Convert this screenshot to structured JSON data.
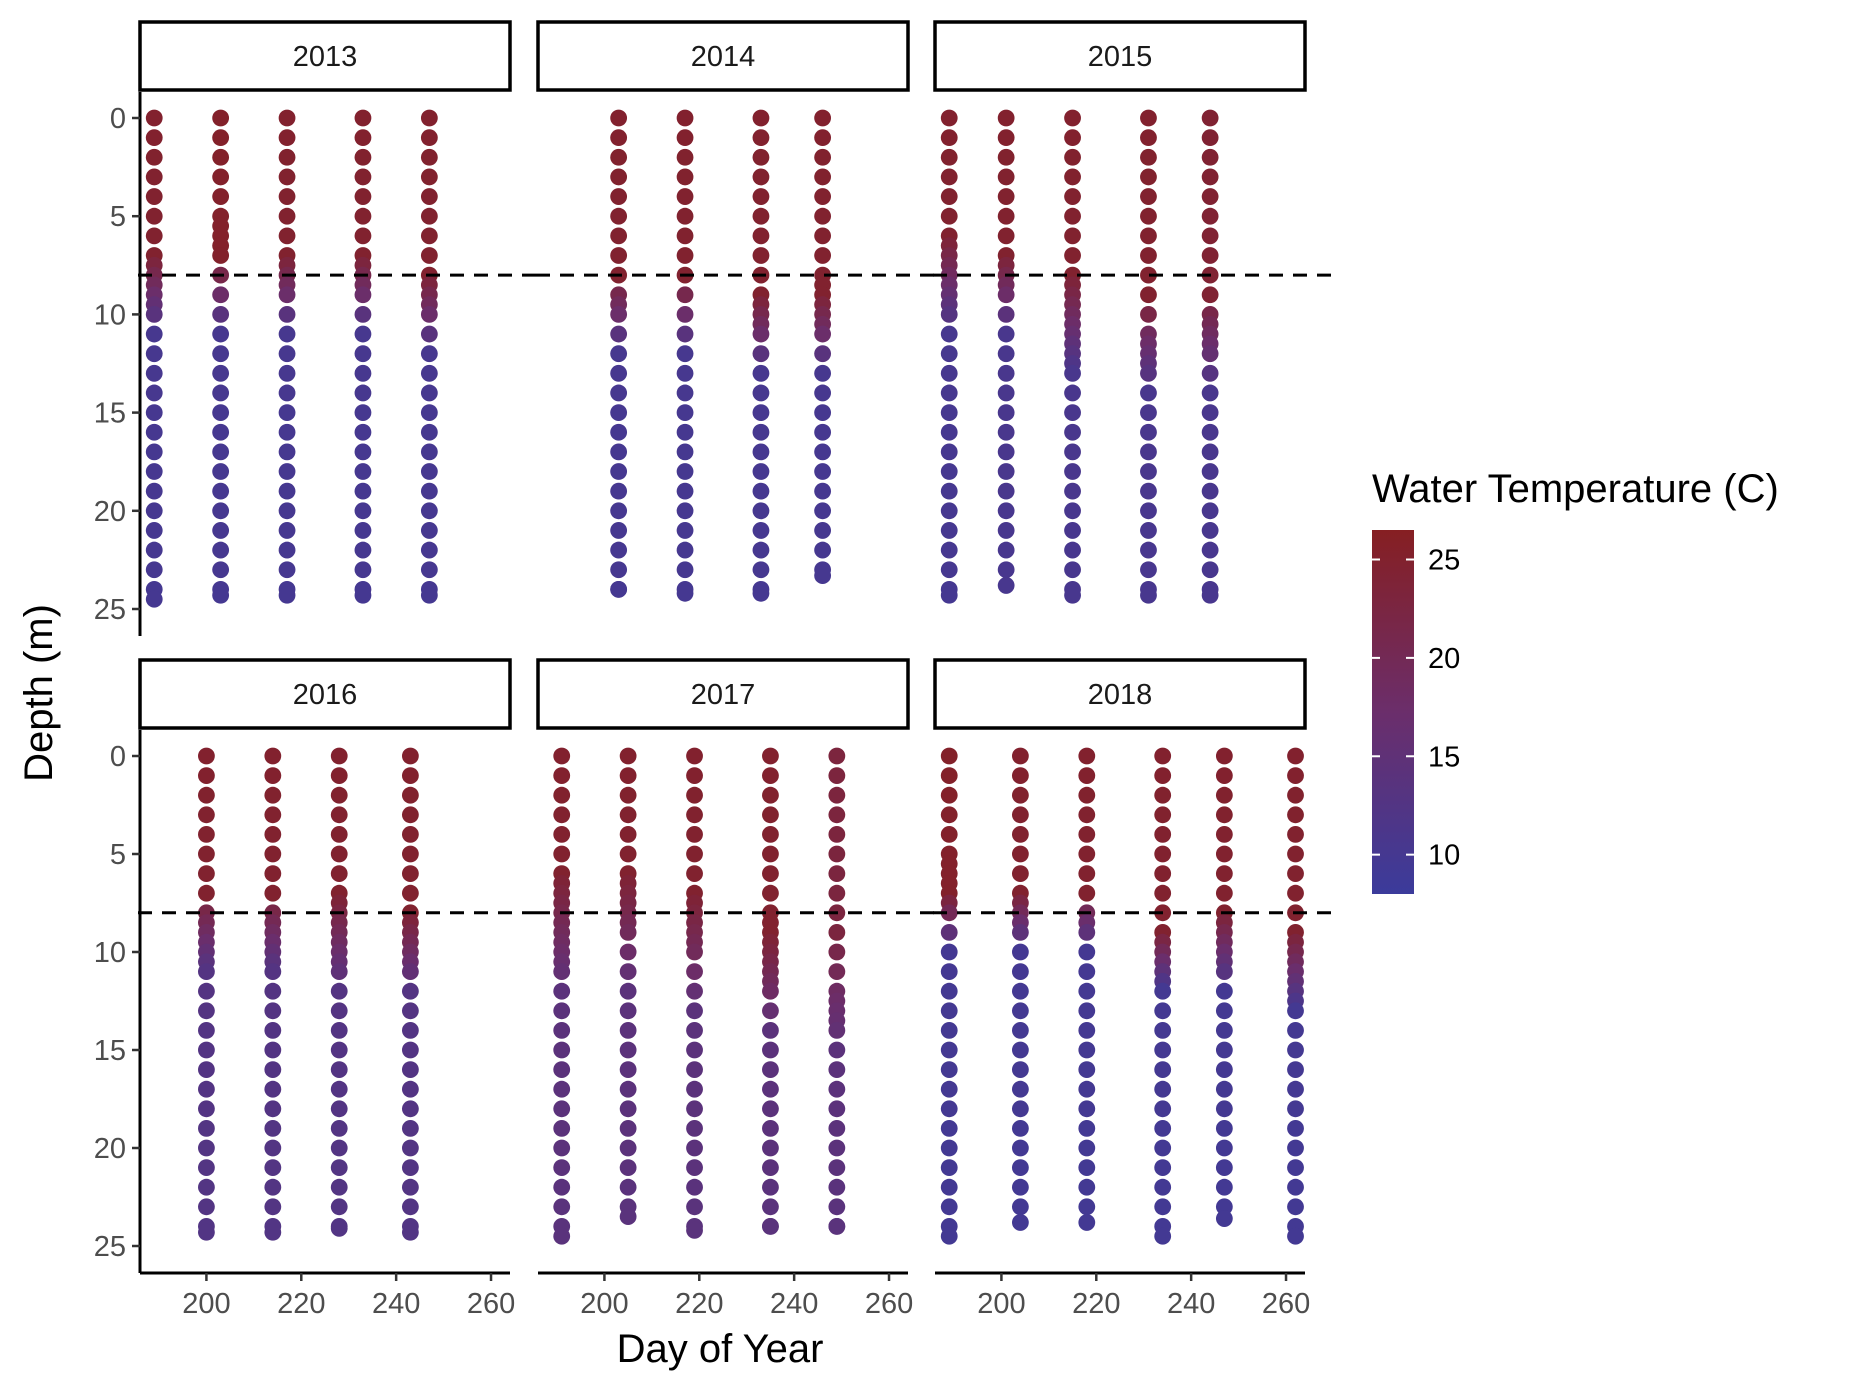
{
  "chart_data": {
    "type": "scatter",
    "facet_by": "year",
    "xlabel": "Day of Year",
    "ylabel": "Depth (m)",
    "xlim": [
      186,
      264
    ],
    "x_ticks": [
      200,
      220,
      240,
      260
    ],
    "ylim": [
      0,
      25
    ],
    "y_ticks": [
      0,
      5,
      10,
      15,
      20,
      25
    ],
    "y_reversed": true,
    "reference_line": {
      "y": 8,
      "style": "dashed",
      "color": "#000000"
    },
    "color_legend": {
      "title": "Water Temperature (C)",
      "min": 8,
      "max": 26.5,
      "ticks": [
        10,
        15,
        20,
        25
      ],
      "low_color": "#3b3b9b",
      "mid_color": "#6b2e6b",
      "high_color": "#861f22"
    },
    "panels": [
      {
        "year": "2013",
        "profiles": [
          {
            "day": 189,
            "max_depth": 24.5,
            "surface_temp": 25.0,
            "thermocline_top": 7,
            "thermocline_bottom": 11,
            "bottom_temp": 10.0,
            "dense": [
              [
                7.5,
                10.5
              ]
            ]
          },
          {
            "day": 203,
            "max_depth": 24.3,
            "surface_temp": 25.5,
            "thermocline_top": 7,
            "thermocline_bottom": 11,
            "bottom_temp": 10.0,
            "dense": [
              [
                5,
                7
              ]
            ]
          },
          {
            "day": 217,
            "max_depth": 24.3,
            "surface_temp": 25.0,
            "thermocline_top": 7,
            "thermocline_bottom": 11,
            "bottom_temp": 10.0,
            "dense": [
              [
                7,
                9
              ]
            ]
          },
          {
            "day": 233,
            "max_depth": 24.3,
            "surface_temp": 25.0,
            "thermocline_top": 7,
            "thermocline_bottom": 11,
            "bottom_temp": 10.0,
            "dense": [
              [
                7,
                9
              ]
            ]
          },
          {
            "day": 247,
            "max_depth": 24.3,
            "surface_temp": 25.0,
            "thermocline_top": 8,
            "thermocline_bottom": 12,
            "bottom_temp": 10.0,
            "dense": [
              [
                8,
                10
              ]
            ]
          }
        ]
      },
      {
        "year": "2014",
        "profiles": [
          {
            "day": 203,
            "max_depth": 24.0,
            "surface_temp": 25.0,
            "thermocline_top": 8,
            "thermocline_bottom": 12,
            "bottom_temp": 10.0,
            "dense": [
              [
                9,
                10
              ]
            ]
          },
          {
            "day": 217,
            "max_depth": 24.2,
            "surface_temp": 25.0,
            "thermocline_top": 8,
            "thermocline_bottom": 12,
            "bottom_temp": 10.0,
            "dense": []
          },
          {
            "day": 233,
            "max_depth": 24.2,
            "surface_temp": 25.0,
            "thermocline_top": 9,
            "thermocline_bottom": 13,
            "bottom_temp": 10.0,
            "dense": [
              [
                9,
                11
              ]
            ]
          },
          {
            "day": 246,
            "max_depth": 23.3,
            "surface_temp": 25.0,
            "thermocline_top": 9,
            "thermocline_bottom": 13,
            "bottom_temp": 10.0,
            "dense": [
              [
                8,
                11
              ]
            ]
          }
        ]
      },
      {
        "year": "2015",
        "profiles": [
          {
            "day": 189,
            "max_depth": 24.3,
            "surface_temp": 25.0,
            "thermocline_top": 6,
            "thermocline_bottom": 11,
            "bottom_temp": 10.0,
            "dense": [
              [
                6,
                10
              ]
            ]
          },
          {
            "day": 201,
            "max_depth": 23.8,
            "surface_temp": 25.0,
            "thermocline_top": 7,
            "thermocline_bottom": 11,
            "bottom_temp": 10.5,
            "dense": [
              [
                7,
                9
              ]
            ]
          },
          {
            "day": 215,
            "max_depth": 24.3,
            "surface_temp": 25.0,
            "thermocline_top": 8,
            "thermocline_bottom": 13,
            "bottom_temp": 10.5,
            "dense": [
              [
                8,
                13
              ]
            ]
          },
          {
            "day": 231,
            "max_depth": 24.3,
            "surface_temp": 25.0,
            "thermocline_top": 9,
            "thermocline_bottom": 14,
            "bottom_temp": 10.5,
            "dense": [
              [
                11,
                13
              ]
            ]
          },
          {
            "day": 244,
            "max_depth": 24.3,
            "surface_temp": 24.5,
            "thermocline_top": 9,
            "thermocline_bottom": 14,
            "bottom_temp": 10.5,
            "dense": [
              [
                10,
                12
              ]
            ]
          }
        ]
      },
      {
        "year": "2016",
        "profiles": [
          {
            "day": 200,
            "max_depth": 24.3,
            "surface_temp": 25.0,
            "thermocline_top": 7,
            "thermocline_bottom": 11,
            "bottom_temp": 12.5,
            "dense": [
              [
                8,
                11
              ]
            ]
          },
          {
            "day": 214,
            "max_depth": 24.3,
            "surface_temp": 25.0,
            "thermocline_top": 7,
            "thermocline_bottom": 11,
            "bottom_temp": 12.5,
            "dense": [
              [
                8,
                11
              ]
            ]
          },
          {
            "day": 228,
            "max_depth": 24.1,
            "surface_temp": 25.0,
            "thermocline_top": 7,
            "thermocline_bottom": 12,
            "bottom_temp": 12.5,
            "dense": [
              [
                7,
                11
              ]
            ]
          },
          {
            "day": 243,
            "max_depth": 24.3,
            "surface_temp": 25.0,
            "thermocline_top": 8,
            "thermocline_bottom": 12,
            "bottom_temp": 12.5,
            "dense": [
              [
                8,
                11
              ]
            ]
          }
        ]
      },
      {
        "year": "2017",
        "profiles": [
          {
            "day": 191,
            "max_depth": 24.5,
            "surface_temp": 25.0,
            "thermocline_top": 6,
            "thermocline_bottom": 12,
            "bottom_temp": 14.0,
            "dense": [
              [
                6,
                11
              ]
            ]
          },
          {
            "day": 205,
            "max_depth": 23.5,
            "surface_temp": 25.0,
            "thermocline_top": 6,
            "thermocline_bottom": 12,
            "bottom_temp": 14.0,
            "dense": [
              [
                6,
                9
              ]
            ]
          },
          {
            "day": 219,
            "max_depth": 24.2,
            "surface_temp": 25.0,
            "thermocline_top": 7,
            "thermocline_bottom": 13,
            "bottom_temp": 14.0,
            "dense": [
              [
                7,
                10
              ]
            ]
          },
          {
            "day": 235,
            "max_depth": 24.0,
            "surface_temp": 25.0,
            "thermocline_top": 9,
            "thermocline_bottom": 14,
            "bottom_temp": 14.0,
            "dense": [
              [
                8,
                12
              ]
            ]
          },
          {
            "day": 249,
            "max_depth": 24.0,
            "surface_temp": 23.0,
            "thermocline_top": 9,
            "thermocline_bottom": 15,
            "bottom_temp": 14.0,
            "dense": [
              [
                12,
                14
              ]
            ]
          }
        ]
      },
      {
        "year": "2018",
        "profiles": [
          {
            "day": 189,
            "max_depth": 24.5,
            "surface_temp": 25.5,
            "thermocline_top": 7,
            "thermocline_bottom": 10,
            "bottom_temp": 9.5,
            "dense": [
              [
                5,
                8
              ]
            ]
          },
          {
            "day": 204,
            "max_depth": 23.8,
            "surface_temp": 25.0,
            "thermocline_top": 7,
            "thermocline_bottom": 10,
            "bottom_temp": 9.5,
            "dense": [
              [
                7,
                9
              ]
            ]
          },
          {
            "day": 218,
            "max_depth": 23.8,
            "surface_temp": 25.0,
            "thermocline_top": 7,
            "thermocline_bottom": 10,
            "bottom_temp": 9.5,
            "dense": [
              [
                8,
                9
              ]
            ]
          },
          {
            "day": 234,
            "max_depth": 24.5,
            "surface_temp": 25.0,
            "thermocline_top": 9,
            "thermocline_bottom": 12,
            "bottom_temp": 9.5,
            "dense": [
              [
                9,
                12
              ]
            ]
          },
          {
            "day": 247,
            "max_depth": 23.6,
            "surface_temp": 25.0,
            "thermocline_top": 8,
            "thermocline_bottom": 12,
            "bottom_temp": 9.5,
            "dense": [
              [
                8,
                11
              ]
            ]
          },
          {
            "day": 262,
            "max_depth": 24.5,
            "surface_temp": 25.0,
            "thermocline_top": 9,
            "thermocline_bottom": 13,
            "bottom_temp": 9.5,
            "dense": [
              [
                9,
                13
              ]
            ]
          }
        ]
      }
    ]
  }
}
